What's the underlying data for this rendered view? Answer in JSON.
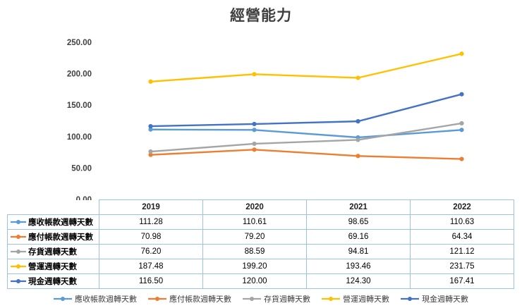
{
  "title": "經營能力",
  "chart_data": {
    "type": "line",
    "title": "經營能力",
    "categories": [
      "2019",
      "2020",
      "2021",
      "2022"
    ],
    "series": [
      {
        "name": "應收帳款週轉天數",
        "color": "#5B9BD5",
        "values": [
          111.28,
          110.61,
          98.65,
          110.63
        ]
      },
      {
        "name": "應付帳款週轉天數",
        "color": "#ED7D31",
        "values": [
          70.98,
          79.2,
          69.16,
          64.34
        ]
      },
      {
        "name": "存貨週轉天數",
        "color": "#A5A5A5",
        "values": [
          76.2,
          88.59,
          94.81,
          121.12
        ]
      },
      {
        "name": "營運週轉天數",
        "color": "#FFC000",
        "values": [
          187.48,
          199.2,
          193.46,
          231.75
        ]
      },
      {
        "name": "現金週轉天數",
        "color": "#4472C4",
        "values": [
          116.5,
          120.0,
          124.3,
          167.41
        ]
      }
    ],
    "ylim": [
      0,
      250
    ],
    "ytick_step": 50,
    "ytick_labels": [
      "0.00",
      "50.00",
      "100.00",
      "150.00",
      "200.00",
      "250.00"
    ],
    "value_format": "0.00",
    "grid": false,
    "legend_position": "bottom",
    "data_table_shown": true,
    "colors": {
      "table_border": "#9CC3E5",
      "axis_text": "#404040",
      "title_text": "#3F3F3F"
    }
  }
}
